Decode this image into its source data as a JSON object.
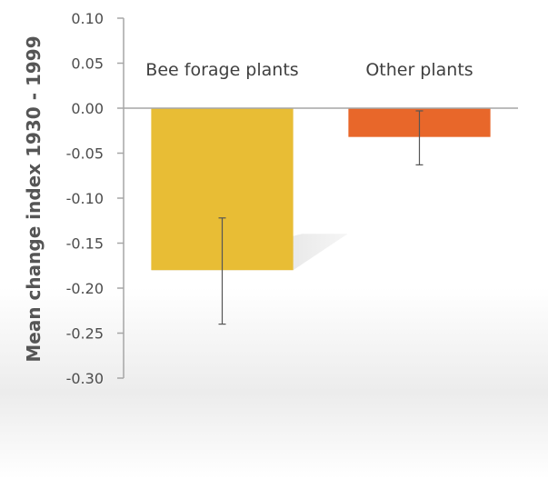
{
  "chart_data": {
    "type": "bar",
    "title": "",
    "xlabel": "",
    "ylabel": "Mean change index 1930 - 1999",
    "categories": [
      "Bee forage plants",
      "Other plants"
    ],
    "values": [
      -0.18,
      -0.032
    ],
    "error_low": [
      -0.24,
      -0.063
    ],
    "error_high": [
      -0.122,
      -0.003
    ],
    "ylim": [
      -0.3,
      0.1
    ],
    "yticks": [
      0.1,
      0.05,
      0.0,
      -0.05,
      -0.1,
      -0.15,
      -0.2,
      -0.25,
      -0.3
    ],
    "ytick_labels": [
      "0.10",
      "0.05",
      "0.00",
      "-0.05",
      "-0.10",
      "-0.15",
      "-0.20",
      "-0.25",
      "-0.30"
    ],
    "grid": false,
    "colors": [
      "#e8bd35",
      "#e8672a"
    ],
    "error_bar_color": "#555555",
    "axis_color": "#a6a6a6"
  }
}
